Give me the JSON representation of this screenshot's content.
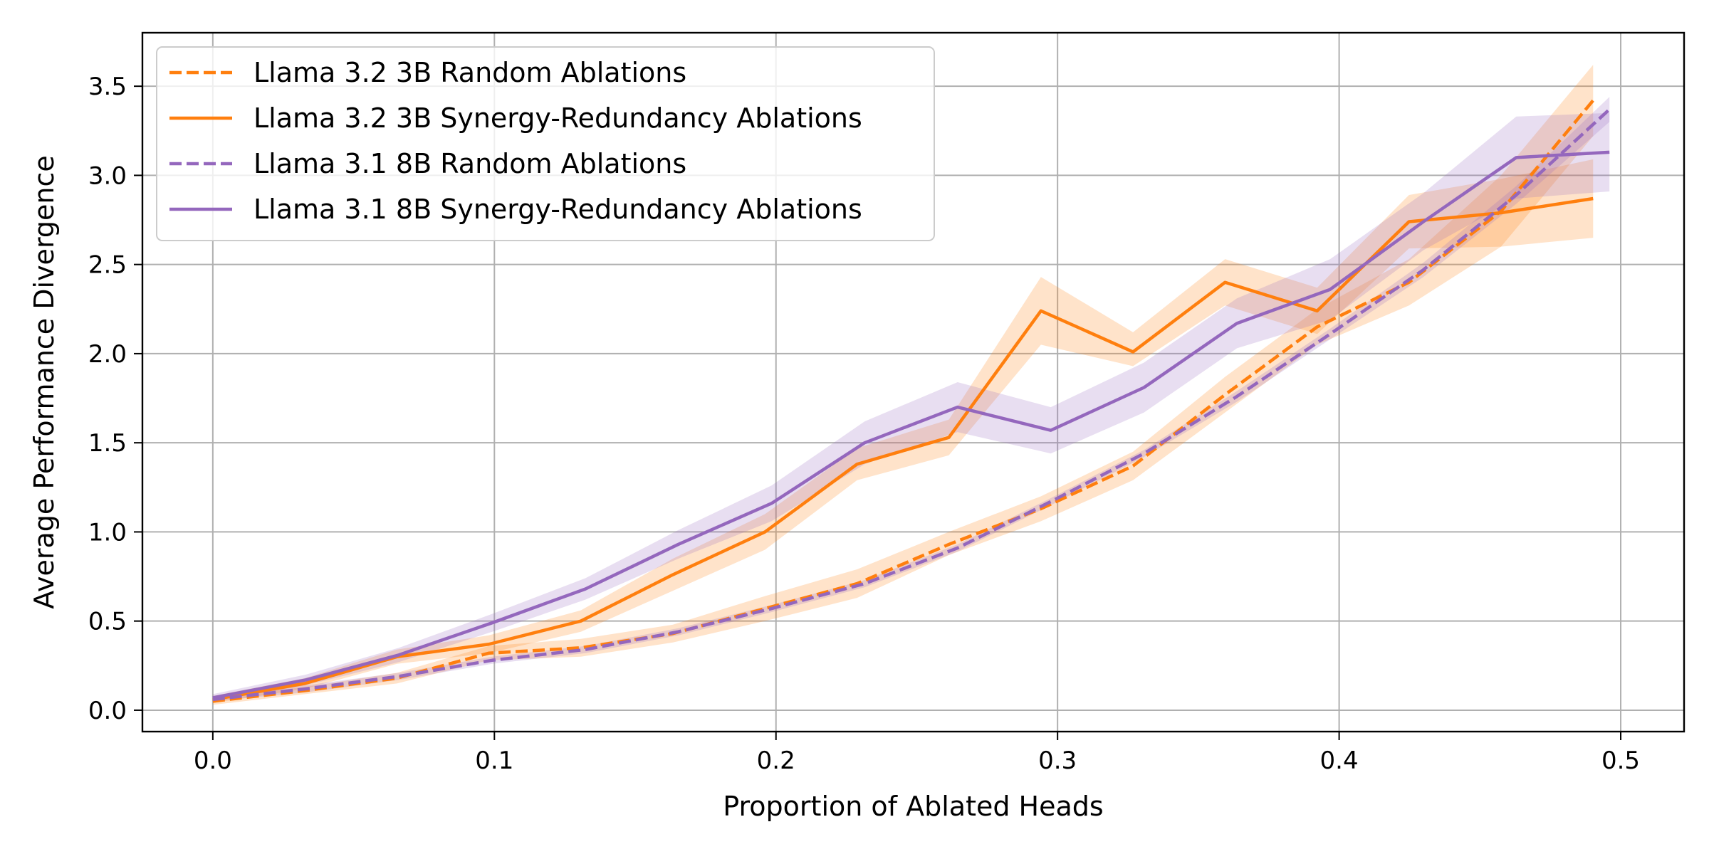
{
  "chart_data": {
    "type": "line",
    "title": "",
    "xlabel": "Proportion of Ablated Heads",
    "ylabel": "Average Performance Divergence",
    "xlim": [
      -0.025,
      0.5225
    ],
    "ylim": [
      -0.12,
      3.8
    ],
    "x_ticks": [
      0.0,
      0.1,
      0.2,
      0.3,
      0.4,
      0.5
    ],
    "x_tick_labels": [
      "0.0",
      "0.1",
      "0.2",
      "0.3",
      "0.4",
      "0.5"
    ],
    "y_ticks": [
      0.0,
      0.5,
      1.0,
      1.5,
      2.0,
      2.5,
      3.0,
      3.5
    ],
    "y_tick_labels": [
      "0.0",
      "0.5",
      "1.0",
      "1.5",
      "2.0",
      "2.5",
      "3.0",
      "3.5"
    ],
    "grid": true,
    "legend_position": "top-left",
    "series": [
      {
        "name": "Llama 3.2 3B Random Ablations",
        "color": "#ff7f0e",
        "linestyle": "dashed",
        "x": [
          0.0,
          0.0327,
          0.0654,
          0.098,
          0.1307,
          0.1634,
          0.1961,
          0.2288,
          0.2614,
          0.2941,
          0.3268,
          0.3595,
          0.3922,
          0.4248,
          0.4575,
          0.4902
        ],
        "y": [
          0.05,
          0.11,
          0.18,
          0.32,
          0.35,
          0.43,
          0.57,
          0.71,
          0.93,
          1.13,
          1.37,
          1.77,
          2.15,
          2.4,
          2.8,
          3.42
        ],
        "lower": [
          0.03,
          0.09,
          0.15,
          0.28,
          0.3,
          0.38,
          0.5,
          0.63,
          0.87,
          1.06,
          1.29,
          1.67,
          2.05,
          2.27,
          2.6,
          3.22
        ],
        "upper": [
          0.07,
          0.13,
          0.21,
          0.36,
          0.4,
          0.48,
          0.64,
          0.79,
          1.0,
          1.2,
          1.45,
          1.87,
          2.25,
          2.53,
          3.0,
          3.62
        ]
      },
      {
        "name": "Llama 3.2 3B Synergy-Redundancy Ablations",
        "color": "#ff7f0e",
        "linestyle": "solid",
        "x": [
          0.0,
          0.0327,
          0.0654,
          0.098,
          0.1307,
          0.1634,
          0.1961,
          0.2288,
          0.2614,
          0.2941,
          0.3268,
          0.3595,
          0.3922,
          0.4248,
          0.4575,
          0.4902
        ],
        "y": [
          0.06,
          0.15,
          0.3,
          0.37,
          0.5,
          0.76,
          1.0,
          1.38,
          1.53,
          2.24,
          2.01,
          2.4,
          2.24,
          2.74,
          2.79,
          2.87
        ],
        "lower": [
          0.04,
          0.12,
          0.26,
          0.32,
          0.44,
          0.67,
          0.9,
          1.29,
          1.43,
          2.05,
          1.93,
          2.27,
          2.11,
          2.59,
          2.6,
          2.65
        ],
        "upper": [
          0.08,
          0.18,
          0.34,
          0.42,
          0.56,
          0.85,
          1.1,
          1.47,
          1.63,
          2.43,
          2.12,
          2.53,
          2.37,
          2.89,
          2.98,
          3.09
        ]
      },
      {
        "name": "Llama 3.1 8B Random Ablations",
        "color": "#9467bd",
        "linestyle": "dashed",
        "x": [
          0.0,
          0.0331,
          0.0661,
          0.0992,
          0.1323,
          0.1653,
          0.1984,
          0.2315,
          0.2645,
          0.2976,
          0.3307,
          0.3637,
          0.3968,
          0.4299,
          0.4629,
          0.496
        ],
        "y": [
          0.06,
          0.12,
          0.19,
          0.28,
          0.34,
          0.44,
          0.57,
          0.71,
          0.91,
          1.17,
          1.44,
          1.76,
          2.11,
          2.47,
          2.89,
          3.37
        ],
        "lower": [
          0.05,
          0.1,
          0.17,
          0.26,
          0.32,
          0.42,
          0.55,
          0.69,
          0.89,
          1.15,
          1.42,
          1.73,
          2.08,
          2.43,
          2.84,
          3.3
        ],
        "upper": [
          0.07,
          0.14,
          0.21,
          0.3,
          0.36,
          0.46,
          0.59,
          0.73,
          0.93,
          1.19,
          1.46,
          1.79,
          2.14,
          2.51,
          2.94,
          3.44
        ]
      },
      {
        "name": "Llama 3.1 8B Synergy-Redundancy Ablations",
        "color": "#9467bd",
        "linestyle": "solid",
        "x": [
          0.0,
          0.0331,
          0.0661,
          0.0992,
          0.1323,
          0.1653,
          0.1984,
          0.2315,
          0.2645,
          0.2976,
          0.3307,
          0.3637,
          0.3968,
          0.4299,
          0.4629,
          0.496
        ],
        "y": [
          0.07,
          0.17,
          0.31,
          0.49,
          0.68,
          0.93,
          1.16,
          1.5,
          1.7,
          1.57,
          1.81,
          2.17,
          2.36,
          2.74,
          3.1,
          3.13
        ],
        "lower": [
          0.05,
          0.14,
          0.27,
          0.44,
          0.62,
          0.85,
          1.06,
          1.38,
          1.56,
          1.44,
          1.67,
          2.03,
          2.19,
          2.58,
          2.87,
          2.91
        ],
        "upper": [
          0.09,
          0.2,
          0.35,
          0.54,
          0.74,
          1.01,
          1.26,
          1.62,
          1.84,
          1.7,
          1.95,
          2.31,
          2.53,
          2.9,
          3.33,
          3.35
        ]
      }
    ]
  }
}
